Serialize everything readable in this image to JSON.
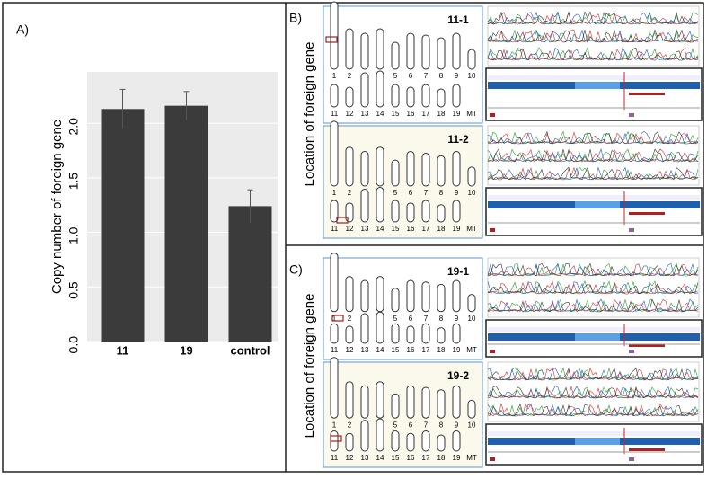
{
  "chart_data": {
    "type": "bar",
    "panel_label": "A)",
    "y_label": "Copy number of foreign gene",
    "categories": [
      "11",
      "19",
      "control"
    ],
    "values": [
      2.13,
      2.16,
      1.24
    ],
    "errors": [
      0.18,
      0.13,
      0.15
    ],
    "color": "#3b3b3b",
    "ylim": [
      0,
      2.47
    ],
    "yticks": [
      {
        "value": 0,
        "label": "0.0"
      },
      {
        "value": 0.5,
        "label": "0.5"
      },
      {
        "value": 1,
        "label": "1.0"
      },
      {
        "value": 1.5,
        "label": "1.5"
      },
      {
        "value": 2,
        "label": "2.0"
      }
    ],
    "grid": true
  },
  "panels": [
    {
      "label": "B)",
      "y_label": "Location of foreign gene",
      "samples": [
        "11-1",
        "11-2"
      ]
    },
    {
      "label": "C)",
      "y_label": "Location of foreign gene",
      "samples": [
        "19-1",
        "19-2"
      ]
    }
  ],
  "chromosomes": {
    "row1": [
      "1",
      "2",
      "3",
      "4",
      "5",
      "6",
      "7",
      "8",
      "9",
      "10"
    ],
    "row2": [
      "11",
      "12",
      "13",
      "14",
      "15",
      "16",
      "17",
      "18",
      "19",
      "MT"
    ]
  }
}
